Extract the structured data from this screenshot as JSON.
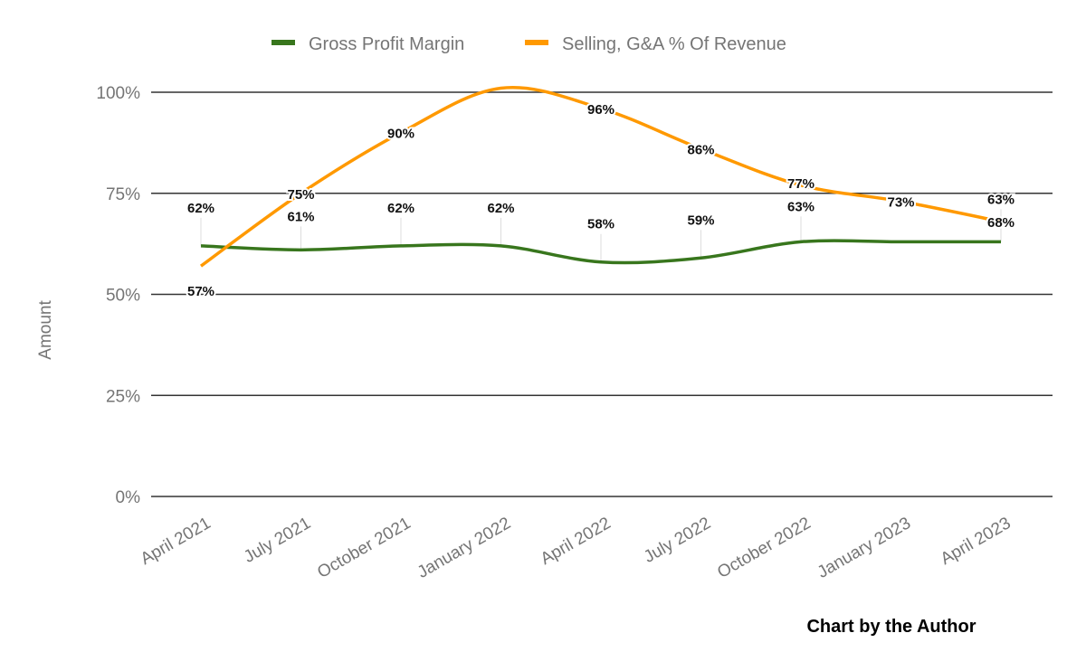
{
  "chart_data": {
    "type": "line",
    "title": "",
    "xlabel": "",
    "ylabel": "Amount",
    "ylim": [
      0,
      100
    ],
    "yticks": [
      "0%",
      "25%",
      "50%",
      "75%",
      "100%"
    ],
    "ytick_values": [
      0,
      25,
      50,
      75,
      100
    ],
    "grid": true,
    "legend_position": "top",
    "smooth": true,
    "categories": [
      "April 2021",
      "July 2021",
      "October 2021",
      "January 2022",
      "April 2022",
      "July 2022",
      "October 2022",
      "January 2023",
      "April 2023"
    ],
    "series": [
      {
        "name": "Gross Profit Margin",
        "color": "#38761d",
        "values": [
          62,
          61,
          62,
          62,
          58,
          59,
          63,
          63,
          63
        ],
        "labels": [
          "62%",
          "61%",
          "62%",
          "62%",
          "58%",
          "59%",
          "63%",
          null,
          "63%"
        ]
      },
      {
        "name": "Selling, G&A % Of Revenue",
        "color": "#ff9900",
        "values": [
          57,
          75,
          90,
          101,
          96,
          86,
          77,
          73,
          68
        ],
        "labels": [
          "57%",
          "75%",
          "90%",
          null,
          "96%",
          "86%",
          "77%",
          "73%",
          "68%"
        ]
      }
    ],
    "annotation": "Chart by the Author"
  }
}
